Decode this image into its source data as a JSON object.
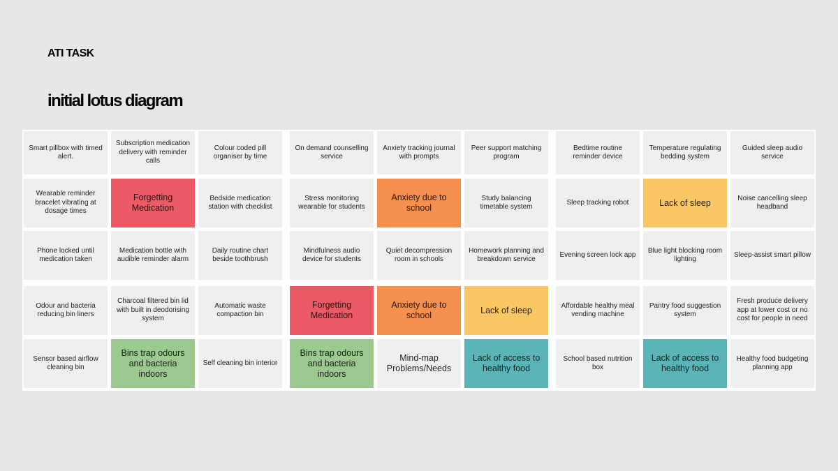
{
  "header": {
    "subtitle": "ATI TASK",
    "title": "initial lotus diagram"
  },
  "grid": {
    "rows": [
      [
        {
          "text": "Smart pillbox with timed alert."
        },
        {
          "text": "Subscription medication delivery with reminder calls"
        },
        {
          "text": "Colour coded pill organiser by time"
        },
        {
          "text": "On demand counselling service"
        },
        {
          "text": "Anxiety tracking journal with prompts"
        },
        {
          "text": "Peer support matching program"
        },
        {
          "text": "Bedtime routine reminder device"
        },
        {
          "text": "Temperature regulating bedding system"
        },
        {
          "text": "Guided sleep audio service"
        }
      ],
      [
        {
          "text": "Wearable reminder bracelet vibrating at dosage times"
        },
        {
          "text": "Forgetting Medication",
          "color": "red"
        },
        {
          "text": "Bedside medication station with checklist"
        },
        {
          "text": "Stress monitoring wearable for students"
        },
        {
          "text": "Anxiety due to school",
          "color": "orange"
        },
        {
          "text": "Study balancing timetable system"
        },
        {
          "text": "Sleep tracking robot"
        },
        {
          "text": "Lack of sleep",
          "color": "yellow"
        },
        {
          "text": "Noise cancelling sleep headband"
        }
      ],
      [
        {
          "text": "Phone locked until medication taken"
        },
        {
          "text": "Medication bottle with audible reminder alarm"
        },
        {
          "text": "Daily routine chart beside toothbrush"
        },
        {
          "text": "Mindfulness audio device for students"
        },
        {
          "text": "Quiet decompression room in schools"
        },
        {
          "text": "Homework planning and breakdown service"
        },
        {
          "text": "Evening screen lock app"
        },
        {
          "text": "Blue light blocking room lighting"
        },
        {
          "text": "Sleep-assist smart pillow"
        }
      ],
      [
        {
          "text": "Odour and bacteria reducing bin liners"
        },
        {
          "text": "Charcoal filtered bin lid with built in deodorising system"
        },
        {
          "text": "Automatic waste compaction bin"
        },
        {
          "text": "Forgetting Medication",
          "color": "red"
        },
        {
          "text": "Anxiety due to school",
          "color": "orange"
        },
        {
          "text": "Lack of sleep",
          "color": "yellow"
        },
        {
          "text": "Affordable healthy meal vending machine"
        },
        {
          "text": "Pantry food suggestion system"
        },
        {
          "text": "Fresh produce delivery app at lower cost or no cost for people in need"
        }
      ],
      [
        {
          "text": "Sensor based airflow cleaning bin"
        },
        {
          "text": "Bins trap odours and bacteria indoors",
          "color": "green"
        },
        {
          "text": "Self cleaning bin interior"
        },
        {
          "text": "Bins trap odours and bacteria indoors",
          "color": "green"
        },
        {
          "text": "Mind-map Problems/Needs",
          "color": "center"
        },
        {
          "text": "Lack of access to healthy food",
          "color": "teal"
        },
        {
          "text": "School based nutrition box"
        },
        {
          "text": "Lack of access to healthy food",
          "color": "teal"
        },
        {
          "text": "Healthy food budgeting planning app"
        }
      ]
    ]
  }
}
